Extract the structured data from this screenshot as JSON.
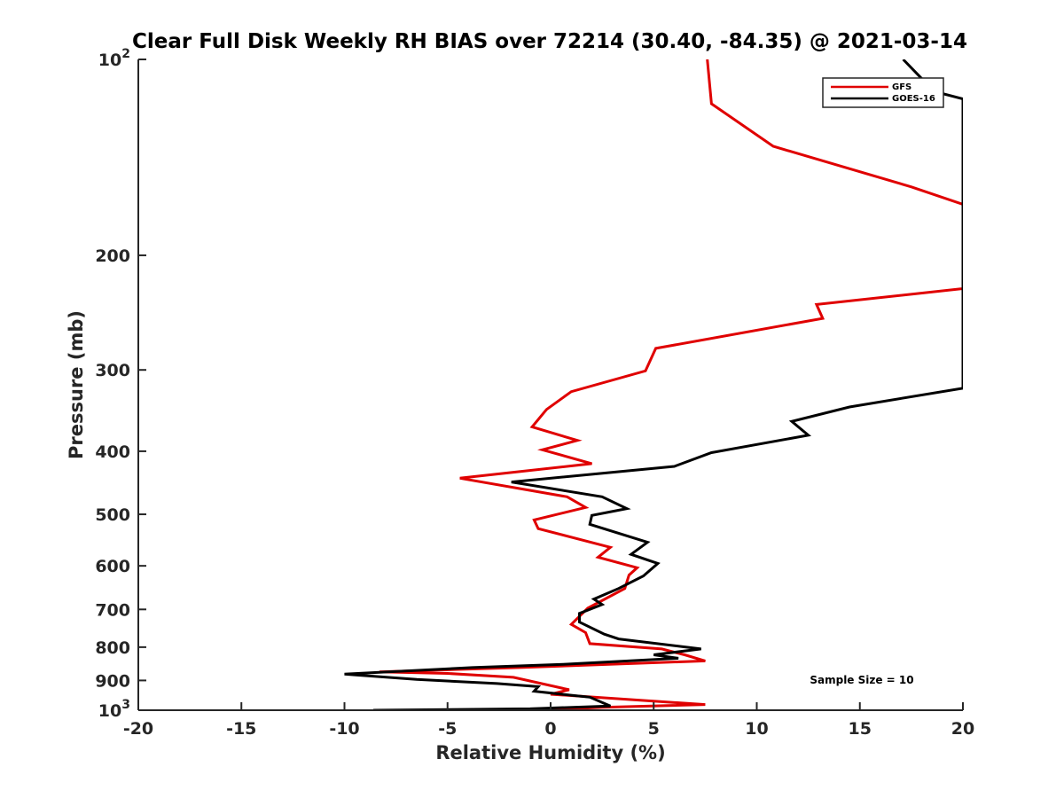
{
  "chart_data": {
    "type": "line",
    "title": "Clear Full Disk Weekly RH BIAS over 72214 (30.40, -84.35) @ 2021-03-14",
    "xlabel": "Relative Humidity (%)",
    "ylabel": "Pressure (mb)",
    "xlim": [
      -20,
      20
    ],
    "ylim": [
      100,
      1000
    ],
    "yscale": "log",
    "y_reversed": true,
    "grid": false,
    "x_ticks": [
      {
        "value": -20,
        "label": "-20"
      },
      {
        "value": -15,
        "label": "-15"
      },
      {
        "value": -10,
        "label": "-10"
      },
      {
        "value": -5,
        "label": "-5"
      },
      {
        "value": 0,
        "label": "0"
      },
      {
        "value": 5,
        "label": "5"
      },
      {
        "value": 10,
        "label": "10"
      },
      {
        "value": 15,
        "label": "15"
      },
      {
        "value": 20,
        "label": "20"
      }
    ],
    "y_ticks": [
      {
        "value": 100,
        "base": "10",
        "exp": "2"
      },
      {
        "value": 200,
        "label": "200"
      },
      {
        "value": 300,
        "label": "300"
      },
      {
        "value": 400,
        "label": "400"
      },
      {
        "value": 500,
        "label": "500"
      },
      {
        "value": 600,
        "label": "600"
      },
      {
        "value": 700,
        "label": "700"
      },
      {
        "value": 800,
        "label": "800"
      },
      {
        "value": 900,
        "label": "900"
      },
      {
        "value": 1000,
        "base": "10",
        "exp": "3"
      }
    ],
    "legend_position": "top-right",
    "annotation": "Sample Size = 10",
    "series": [
      {
        "name": "GFS",
        "color": "#e00000",
        "points": [
          [
            7.6,
            100
          ],
          [
            7.8,
            117
          ],
          [
            10.8,
            136
          ],
          [
            17.5,
            157
          ],
          [
            20.0,
            167
          ],
          [
            20.0,
            180
          ],
          [
            20.0,
            225
          ],
          [
            12.9,
            238
          ],
          [
            13.2,
            250
          ],
          [
            5.1,
            278
          ],
          [
            4.6,
            301
          ],
          [
            1.0,
            324
          ],
          [
            -0.2,
            345
          ],
          [
            -0.9,
            367
          ],
          [
            1.3,
            385
          ],
          [
            -0.4,
            398
          ],
          [
            2.0,
            418
          ],
          [
            -4.4,
            440
          ],
          [
            0.8,
            470
          ],
          [
            1.7,
            488
          ],
          [
            -0.8,
            510
          ],
          [
            -0.6,
            526
          ],
          [
            2.9,
            562
          ],
          [
            2.3,
            582
          ],
          [
            4.2,
            604
          ],
          [
            3.8,
            620
          ],
          [
            3.6,
            650
          ],
          [
            1.8,
            697
          ],
          [
            1.0,
            738
          ],
          [
            1.7,
            760
          ],
          [
            1.9,
            790
          ],
          [
            5.4,
            805
          ],
          [
            6.5,
            822
          ],
          [
            7.5,
            840
          ],
          [
            -1.5,
            860
          ],
          [
            -8.3,
            873
          ],
          [
            -5.0,
            878
          ],
          [
            -1.8,
            890
          ],
          [
            0.9,
            930
          ],
          [
            0.0,
            945
          ],
          [
            7.5,
            980
          ],
          [
            2.5,
            990
          ],
          [
            -0.6,
            1000
          ]
        ]
      },
      {
        "name": "GOES-16",
        "color": "#000000",
        "points": [
          [
            17.1,
            100
          ],
          [
            18.6,
            112
          ],
          [
            20.0,
            115
          ],
          [
            20.0,
            120
          ],
          [
            20.0,
            320
          ],
          [
            14.5,
            342
          ],
          [
            11.7,
            360
          ],
          [
            12.5,
            378
          ],
          [
            7.8,
            402
          ],
          [
            6.0,
            422
          ],
          [
            -1.9,
            446
          ],
          [
            2.5,
            470
          ],
          [
            3.7,
            490
          ],
          [
            2.0,
            502
          ],
          [
            1.9,
            518
          ],
          [
            4.7,
            552
          ],
          [
            3.9,
            576
          ],
          [
            5.2,
            595
          ],
          [
            4.5,
            622
          ],
          [
            3.3,
            650
          ],
          [
            2.1,
            675
          ],
          [
            2.5,
            688
          ],
          [
            1.4,
            710
          ],
          [
            1.4,
            732
          ],
          [
            2.6,
            764
          ],
          [
            3.3,
            777
          ],
          [
            7.3,
            805
          ],
          [
            5.0,
            822
          ],
          [
            6.2,
            832
          ],
          [
            0.6,
            850
          ],
          [
            -3.8,
            860
          ],
          [
            -10.0,
            880
          ],
          [
            -6.5,
            897
          ],
          [
            -2.6,
            910
          ],
          [
            -0.6,
            920
          ],
          [
            -0.8,
            935
          ],
          [
            1.9,
            955
          ],
          [
            2.9,
            985
          ],
          [
            -1.0,
            995
          ],
          [
            -8.6,
            1000
          ]
        ]
      }
    ]
  }
}
